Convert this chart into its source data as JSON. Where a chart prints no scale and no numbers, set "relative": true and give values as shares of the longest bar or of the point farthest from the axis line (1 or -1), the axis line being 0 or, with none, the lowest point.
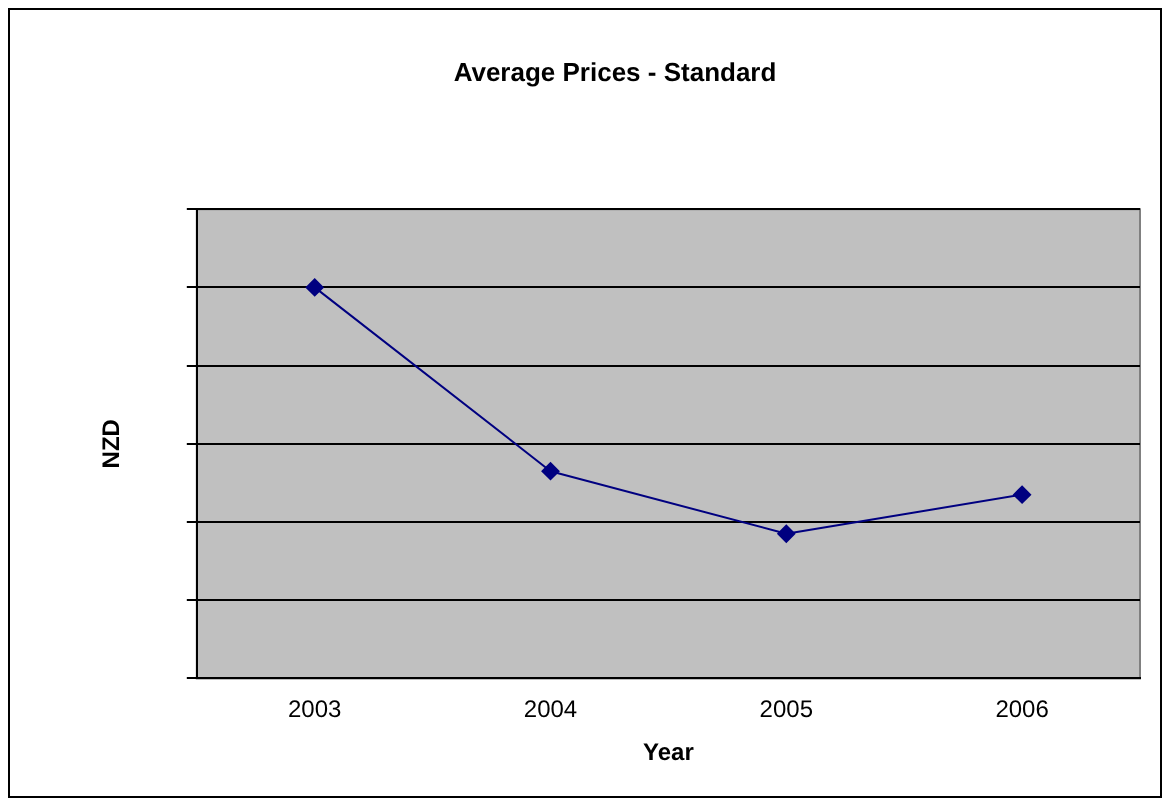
{
  "chart_data": {
    "type": "line",
    "title": "Average Prices - Standard",
    "xlabel": "Year",
    "ylabel": "NZD",
    "categories": [
      "2003",
      "2004",
      "2005",
      "2006"
    ],
    "series": [
      {
        "color": "#000080",
        "values": [
          1,
          0.53,
          0.37,
          0.47
        ]
      }
    ],
    "relative": true,
    "grid": "y",
    "marker": "diamond",
    "legend": false
  }
}
